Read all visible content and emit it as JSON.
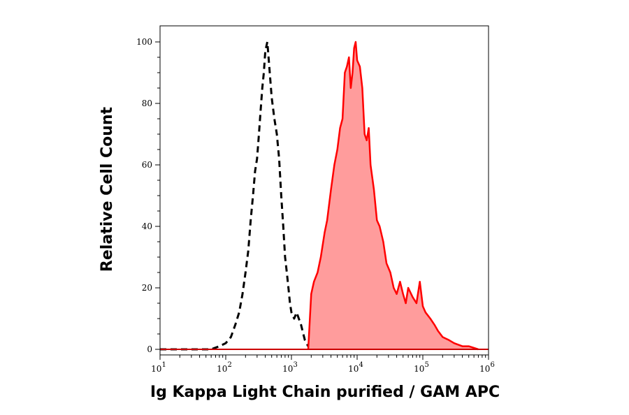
{
  "chart_data": {
    "type": "area",
    "xlabel": "Ig Kappa Light Chain purified / GAM APC",
    "ylabel": "Relative Cell Count",
    "x_scale": "log",
    "xlim": [
      10,
      1000000
    ],
    "ylim": [
      0,
      100
    ],
    "x_ticks": [
      {
        "value": 10,
        "base": "10",
        "exp": "1"
      },
      {
        "value": 100,
        "base": "10",
        "exp": "2"
      },
      {
        "value": 1000,
        "base": "10",
        "exp": "3"
      },
      {
        "value": 10000,
        "base": "10",
        "exp": "4"
      },
      {
        "value": 100000,
        "base": "10",
        "exp": "5"
      },
      {
        "value": 1000000,
        "base": "10",
        "exp": "6"
      }
    ],
    "y_ticks": [
      0,
      20,
      40,
      60,
      80,
      100
    ],
    "grid": false,
    "legend": "none",
    "series": [
      {
        "style": "dashed",
        "color": "#000000",
        "fill": "none",
        "x": [
          10,
          60,
          80,
          100,
          120,
          140,
          160,
          180,
          200,
          220,
          240,
          260,
          280,
          300,
          320,
          340,
          360,
          380,
          400,
          430,
          460,
          500,
          550,
          600,
          650,
          700,
          750,
          800,
          850,
          900,
          950,
          1000,
          1100,
          1200,
          1400,
          1600,
          1800,
          2000
        ],
        "y": [
          0,
          0,
          1,
          2,
          4,
          8,
          12,
          18,
          25,
          32,
          42,
          50,
          58,
          62,
          70,
          78,
          85,
          90,
          97,
          100,
          92,
          82,
          75,
          70,
          62,
          50,
          40,
          30,
          25,
          20,
          15,
          12,
          10,
          12,
          8,
          3,
          1,
          0
        ]
      },
      {
        "style": "solid",
        "color": "#ff0000",
        "fill": "#ff9c9c",
        "x": [
          1800,
          2000,
          2200,
          2500,
          2800,
          3200,
          3500,
          4000,
          4500,
          5000,
          5500,
          6000,
          6500,
          7000,
          7500,
          8000,
          8500,
          9000,
          9500,
          10000,
          11000,
          12000,
          13000,
          14000,
          15000,
          16000,
          18000,
          20000,
          22000,
          25000,
          28000,
          32000,
          36000,
          40000,
          45000,
          50000,
          55000,
          60000,
          70000,
          80000,
          90000,
          100000,
          110000,
          130000,
          150000,
          170000,
          200000,
          250000,
          300000,
          400000,
          500000,
          700000
        ],
        "y": [
          0,
          18,
          22,
          25,
          30,
          38,
          42,
          52,
          60,
          65,
          72,
          75,
          90,
          92,
          95,
          85,
          90,
          98,
          100,
          94,
          92,
          85,
          70,
          68,
          72,
          60,
          52,
          42,
          40,
          35,
          28,
          25,
          20,
          18,
          22,
          18,
          15,
          20,
          17,
          15,
          22,
          14,
          12,
          10,
          8,
          6,
          4,
          3,
          2,
          1,
          1,
          0
        ]
      }
    ]
  }
}
